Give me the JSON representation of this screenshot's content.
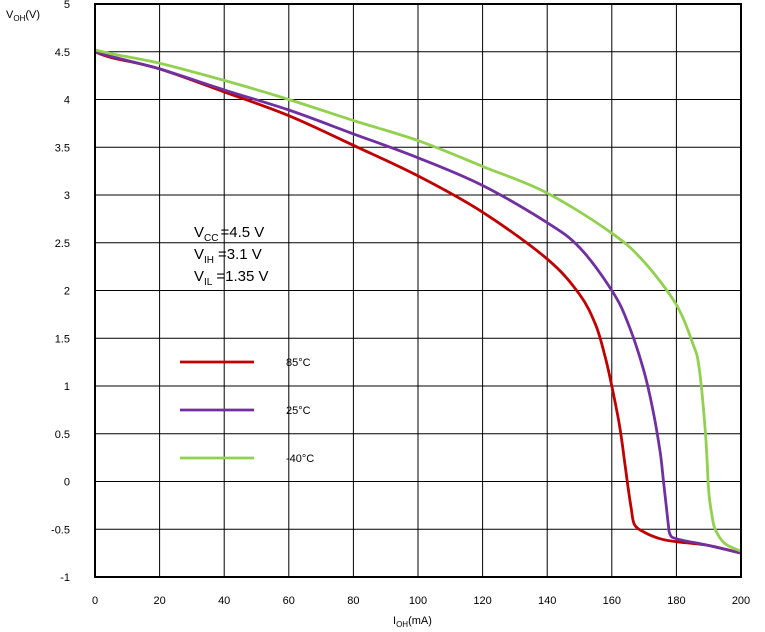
{
  "chart_data": {
    "type": "line",
    "xlabel": {
      "main": "I",
      "sub": "OH",
      "unit": "(mA)"
    },
    "ylabel": {
      "main": "V",
      "sub": "OH",
      "unit": "(V)"
    },
    "xlim": [
      0,
      200
    ],
    "ylim": [
      -1,
      5
    ],
    "xticks": [
      0,
      20,
      40,
      60,
      80,
      100,
      120,
      140,
      160,
      180,
      200
    ],
    "yticks": [
      -1,
      -0.5,
      0,
      0.5,
      1,
      1.5,
      2,
      2.5,
      3,
      3.5,
      4,
      4.5,
      5
    ],
    "grid": true,
    "annotations": [
      {
        "main": "V",
        "sub": "CC",
        "value": "=4.5 V"
      },
      {
        "main": "V",
        "sub": "IH",
        "value": "=3.1 V"
      },
      {
        "main": "V",
        "sub": "IL",
        "value": "=1.35 V"
      }
    ],
    "legend_position": "left-middle",
    "series": [
      {
        "name": "85°C",
        "color": "#c00000",
        "x": [
          0,
          5,
          20,
          40,
          60,
          80,
          100,
          120,
          140,
          150,
          155,
          158,
          160,
          162,
          163,
          164,
          165,
          166,
          167,
          170,
          175,
          180,
          190,
          200
        ],
        "y": [
          4.5,
          4.44,
          4.32,
          4.08,
          3.83,
          3.52,
          3.2,
          2.82,
          2.33,
          1.96,
          1.64,
          1.3,
          1.0,
          0.66,
          0.45,
          0.2,
          -0.05,
          -0.28,
          -0.45,
          -0.53,
          -0.6,
          -0.63,
          -0.67,
          -0.75
        ]
      },
      {
        "name": "25°C",
        "color": "#7030a0",
        "x": [
          0,
          5,
          20,
          40,
          60,
          80,
          100,
          120,
          140,
          150,
          160,
          165,
          170,
          173,
          175,
          176,
          177,
          177.5,
          178,
          180,
          190,
          200
        ],
        "y": [
          4.5,
          4.45,
          4.32,
          4.1,
          3.89,
          3.64,
          3.39,
          3.1,
          2.71,
          2.45,
          2.0,
          1.66,
          1.15,
          0.7,
          0.3,
          0.0,
          -0.3,
          -0.45,
          -0.55,
          -0.6,
          -0.67,
          -0.75
        ]
      },
      {
        "name": "-40°C",
        "color": "#92d050",
        "x": [
          0,
          5,
          20,
          40,
          60,
          80,
          100,
          120,
          140,
          160,
          170,
          180,
          185,
          187,
          189,
          190,
          191,
          192,
          195,
          200
        ],
        "y": [
          4.52,
          4.48,
          4.38,
          4.2,
          4.0,
          3.78,
          3.57,
          3.3,
          3.02,
          2.6,
          2.3,
          1.85,
          1.45,
          1.2,
          0.5,
          -0.1,
          -0.35,
          -0.5,
          -0.65,
          -0.73
        ]
      }
    ]
  }
}
